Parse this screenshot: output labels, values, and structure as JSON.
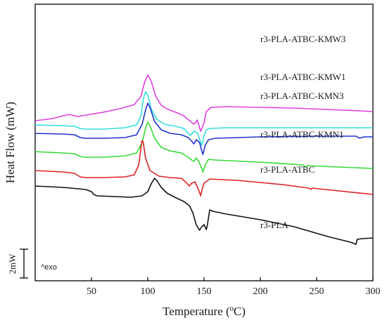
{
  "chart_data": {
    "type": "line",
    "xlabel": "Temperature (ºC)",
    "ylabel": "Heat Flow (mW)",
    "xlim": [
      0,
      300
    ],
    "x_ticks": [
      50,
      100,
      150,
      200,
      250,
      300
    ],
    "x_tick_labels": [
      "50",
      "100",
      "150",
      "200",
      "250",
      "300"
    ],
    "y_scale": "relative (curves vertically offset)",
    "grid": false,
    "legend": "none (curves labeled inline)",
    "scale_bar_label": "2mW",
    "exo_label": "^exo",
    "series": [
      {
        "name": "r3-PLA-ATBC-KMW3",
        "color": "#e040e0",
        "points": [
          [
            0,
            93
          ],
          [
            15,
            96
          ],
          [
            30,
            102
          ],
          [
            38,
            99
          ],
          [
            45,
            101
          ],
          [
            60,
            105
          ],
          [
            75,
            110
          ],
          [
            88,
            116
          ],
          [
            94,
            128
          ],
          [
            97,
            147
          ],
          [
            100,
            158
          ],
          [
            103,
            150
          ],
          [
            107,
            128
          ],
          [
            112,
            115
          ],
          [
            118,
            109
          ],
          [
            125,
            105
          ],
          [
            132,
            100
          ],
          [
            138,
            92
          ],
          [
            141,
            88
          ],
          [
            144,
            94
          ],
          [
            147,
            78
          ],
          [
            150,
            90
          ],
          [
            152,
            106
          ],
          [
            156,
            112
          ],
          [
            170,
            113
          ],
          [
            200,
            112
          ],
          [
            230,
            111
          ],
          [
            260,
            109
          ],
          [
            290,
            107
          ],
          [
            300,
            106
          ]
        ]
      },
      {
        "name": "r3-PLA-ATBC-KMW1",
        "color": "#33dddd",
        "points": [
          [
            0,
            87
          ],
          [
            25,
            86
          ],
          [
            35,
            85
          ],
          [
            40,
            82
          ],
          [
            45,
            81
          ],
          [
            60,
            81
          ],
          [
            80,
            83
          ],
          [
            90,
            87
          ],
          [
            94,
            100
          ],
          [
            96,
            124
          ],
          [
            98,
            134
          ],
          [
            100,
            130
          ],
          [
            103,
            110
          ],
          [
            108,
            95
          ],
          [
            115,
            88
          ],
          [
            125,
            85
          ],
          [
            132,
            82
          ],
          [
            136,
            75
          ],
          [
            138,
            72
          ],
          [
            141,
            78
          ],
          [
            144,
            76
          ],
          [
            147,
            62
          ],
          [
            148,
            58
          ],
          [
            150,
            72
          ],
          [
            152,
            80
          ],
          [
            155,
            82
          ],
          [
            170,
            83
          ],
          [
            200,
            83
          ],
          [
            250,
            83
          ],
          [
            300,
            83
          ]
        ]
      },
      {
        "name": "r3-PLA-ATBC-KMN3",
        "color": "#2233cc",
        "points": [
          [
            0,
            75
          ],
          [
            25,
            74
          ],
          [
            35,
            73
          ],
          [
            40,
            69
          ],
          [
            45,
            68
          ],
          [
            60,
            68
          ],
          [
            80,
            69
          ],
          [
            90,
            73
          ],
          [
            95,
            88
          ],
          [
            98,
            108
          ],
          [
            100,
            118
          ],
          [
            102,
            112
          ],
          [
            106,
            92
          ],
          [
            112,
            80
          ],
          [
            120,
            75
          ],
          [
            130,
            73
          ],
          [
            136,
            69
          ],
          [
            139,
            64
          ],
          [
            141,
            60
          ],
          [
            143,
            66
          ],
          [
            146,
            62
          ],
          [
            148,
            50
          ],
          [
            149,
            45
          ],
          [
            151,
            58
          ],
          [
            154,
            66
          ],
          [
            160,
            68
          ],
          [
            200,
            70
          ],
          [
            250,
            71
          ],
          [
            285,
            71
          ],
          [
            288,
            68
          ],
          [
            292,
            70
          ],
          [
            300,
            70
          ]
        ]
      },
      {
        "name": "r3-PLA-ATBC-KMN1",
        "color": "#33dd33",
        "points": [
          [
            0,
            49
          ],
          [
            25,
            47
          ],
          [
            35,
            46
          ],
          [
            40,
            42
          ],
          [
            45,
            41
          ],
          [
            60,
            41
          ],
          [
            80,
            43
          ],
          [
            90,
            47
          ],
          [
            95,
            62
          ],
          [
            98,
            82
          ],
          [
            100,
            91
          ],
          [
            102,
            86
          ],
          [
            106,
            68
          ],
          [
            112,
            55
          ],
          [
            120,
            50
          ],
          [
            130,
            47
          ],
          [
            136,
            41
          ],
          [
            139,
            37
          ],
          [
            141,
            35
          ],
          [
            143,
            40
          ],
          [
            145,
            36
          ],
          [
            148,
            25
          ],
          [
            149,
            20
          ],
          [
            151,
            30
          ],
          [
            154,
            38
          ],
          [
            160,
            37
          ],
          [
            200,
            34
          ],
          [
            238,
            30
          ],
          [
            240,
            27
          ],
          [
            242,
            29
          ],
          [
            270,
            27
          ],
          [
            300,
            25
          ]
        ]
      },
      {
        "name": "r3-PLA-ATBC",
        "color": "#dd2222",
        "points": [
          [
            0,
            22
          ],
          [
            25,
            20
          ],
          [
            35,
            18
          ],
          [
            40,
            13
          ],
          [
            45,
            12
          ],
          [
            60,
            12
          ],
          [
            80,
            13
          ],
          [
            88,
            16
          ],
          [
            92,
            30
          ],
          [
            94,
            55
          ],
          [
            95,
            65
          ],
          [
            96,
            62
          ],
          [
            98,
            40
          ],
          [
            102,
            22
          ],
          [
            110,
            14
          ],
          [
            120,
            12
          ],
          [
            130,
            11
          ],
          [
            134,
            5
          ],
          [
            137,
            0
          ],
          [
            139,
            4
          ],
          [
            142,
            6
          ],
          [
            145,
            -5
          ],
          [
            147,
            -14
          ],
          [
            148,
            -6
          ],
          [
            150,
            4
          ],
          [
            155,
            10
          ],
          [
            180,
            8
          ],
          [
            220,
            2
          ],
          [
            243,
            -3
          ],
          [
            245,
            -5
          ],
          [
            246,
            -3
          ],
          [
            270,
            -7
          ],
          [
            300,
            -12
          ]
        ]
      },
      {
        "name": "r3-PLA",
        "color": "#111111",
        "points": [
          [
            0,
            0
          ],
          [
            25,
            -2
          ],
          [
            45,
            -5
          ],
          [
            50,
            -8
          ],
          [
            52,
            -12
          ],
          [
            55,
            -14
          ],
          [
            70,
            -15
          ],
          [
            85,
            -16
          ],
          [
            95,
            -14
          ],
          [
            100,
            -8
          ],
          [
            103,
            3
          ],
          [
            106,
            11
          ],
          [
            108,
            8
          ],
          [
            112,
            -2
          ],
          [
            117,
            -10
          ],
          [
            124,
            -16
          ],
          [
            132,
            -22
          ],
          [
            137,
            -28
          ],
          [
            140,
            -38
          ],
          [
            143,
            -55
          ],
          [
            146,
            -63
          ],
          [
            148,
            -58
          ],
          [
            150,
            -55
          ],
          [
            152,
            -62
          ],
          [
            153,
            -55
          ],
          [
            155,
            -34
          ],
          [
            158,
            -36
          ],
          [
            170,
            -40
          ],
          [
            200,
            -48
          ],
          [
            230,
            -58
          ],
          [
            260,
            -72
          ],
          [
            280,
            -80
          ],
          [
            285,
            -83
          ],
          [
            286,
            -76
          ],
          [
            290,
            -75
          ],
          [
            300,
            -74
          ]
        ]
      }
    ]
  }
}
